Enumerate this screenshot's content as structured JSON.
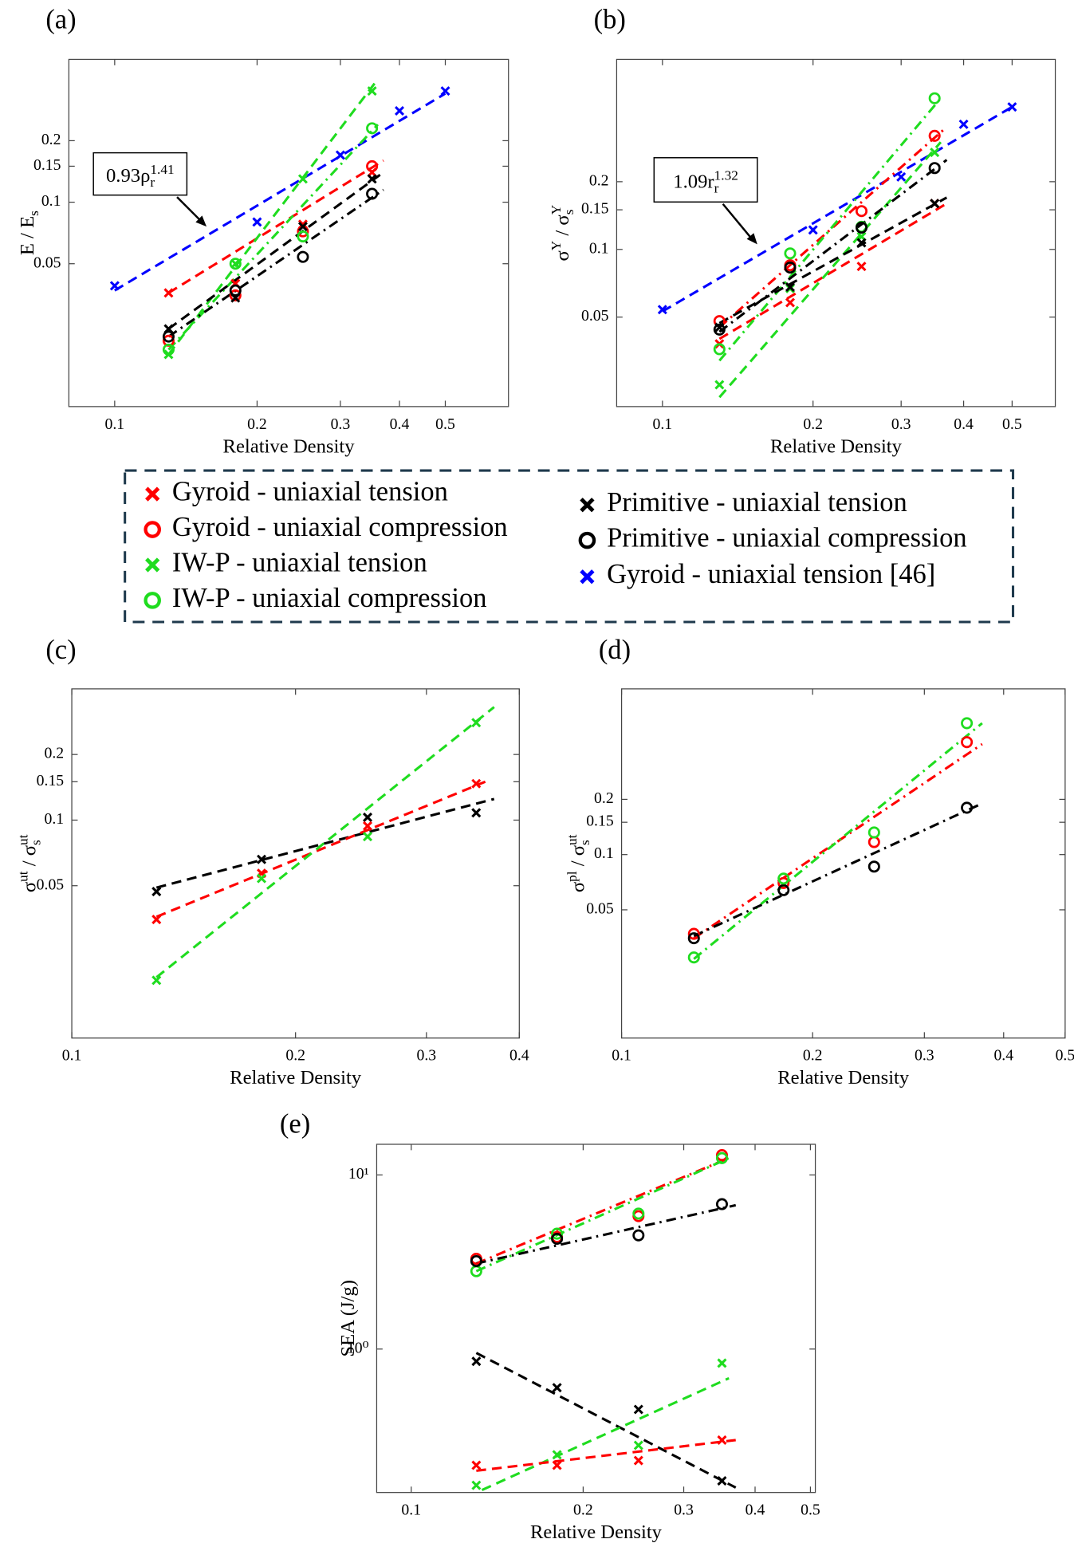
{
  "chart_data": [
    {
      "type": "scatter",
      "panel": "(a)",
      "xlabel": "Relative Density",
      "ylabel": [
        {
          "text": "E / E"
        },
        {
          "text": "s",
          "pos": "sub"
        }
      ],
      "xlog": true,
      "ylog": true,
      "xlim": [
        0.08,
        0.68
      ],
      "ylim": [
        0.01,
        0.5
      ],
      "xticks": [
        0.1,
        0.2,
        0.3,
        0.4,
        0.5
      ],
      "yticks": [
        0.05,
        0.1,
        0.15,
        0.2
      ],
      "annotation": [
        {
          "text": "0.93ρ"
        },
        {
          "text": "r",
          "pos": "sub"
        },
        {
          "text": "1.41",
          "pos": "sup"
        }
      ],
      "series": [
        {
          "color": "#ff0000",
          "marker": "x",
          "x": [
            0.13,
            0.18,
            0.25,
            0.35
          ],
          "values": [
            0.036,
            0.04,
            0.078,
            0.14
          ]
        },
        {
          "color": "#ff0000",
          "marker": "o",
          "x": [
            0.13,
            0.18,
            0.25,
            0.35
          ],
          "values": [
            0.021,
            0.035,
            0.072,
            0.15
          ]
        },
        {
          "color": "#1fdc1f",
          "marker": "x",
          "x": [
            0.13,
            0.18,
            0.25,
            0.35
          ],
          "values": [
            0.018,
            0.05,
            0.13,
            0.35
          ]
        },
        {
          "color": "#1fdc1f",
          "marker": "o",
          "x": [
            0.13,
            0.18,
            0.25,
            0.35
          ],
          "values": [
            0.019,
            0.05,
            0.068,
            0.23
          ]
        },
        {
          "color": "#000000",
          "marker": "x",
          "x": [
            0.13,
            0.18,
            0.25,
            0.35
          ],
          "values": [
            0.024,
            0.034,
            0.076,
            0.13
          ]
        },
        {
          "color": "#000000",
          "marker": "o",
          "x": [
            0.13,
            0.18,
            0.25,
            0.35
          ],
          "values": [
            0.022,
            0.037,
            0.054,
            0.11
          ]
        },
        {
          "color": "#0000ff",
          "marker": "x",
          "x": [
            0.1,
            0.2,
            0.3,
            0.4,
            0.5
          ],
          "values": [
            0.039,
            0.08,
            0.17,
            0.28,
            0.35
          ]
        }
      ],
      "fits": [
        {
          "color": "#0000ff",
          "dash": "dashed",
          "x": [
            0.1,
            0.5
          ],
          "values": [
            0.037,
            0.34
          ]
        },
        {
          "color": "#ff0000",
          "dash": "dashed",
          "x": [
            0.13,
            0.37
          ],
          "values": [
            0.036,
            0.16
          ]
        },
        {
          "color": "#1fdc1f",
          "dash": "dashed",
          "x": [
            0.13,
            0.36
          ],
          "values": [
            0.018,
            0.4
          ]
        },
        {
          "color": "#1fdc1f",
          "dash": "dashdot",
          "x": [
            0.13,
            0.36
          ],
          "values": [
            0.019,
            0.24
          ]
        },
        {
          "color": "#000000",
          "dash": "dashed",
          "x": [
            0.13,
            0.37
          ],
          "values": [
            0.024,
            0.14
          ]
        },
        {
          "color": "#000000",
          "dash": "dashdot",
          "x": [
            0.13,
            0.37
          ],
          "values": [
            0.022,
            0.115
          ]
        }
      ]
    },
    {
      "type": "scatter",
      "panel": "(b)",
      "xlabel": "Relative Density",
      "ylabel": [
        {
          "text": "σ"
        },
        {
          "text": "Y",
          "pos": "sup"
        },
        {
          "text": " / σ"
        },
        {
          "text": "s",
          "pos": "sub"
        },
        {
          "text": "Y",
          "pos": "sup"
        }
      ],
      "xlog": true,
      "ylog": true,
      "xlim": [
        0.081,
        0.61
      ],
      "ylim": [
        0.02,
        0.7
      ],
      "xticks": [
        0.1,
        0.2,
        0.3,
        0.4,
        0.5
      ],
      "yticks": [
        0.05,
        0.1,
        0.15,
        0.2
      ],
      "annotation": [
        {
          "text": "1.09r"
        },
        {
          "text": "r",
          "pos": "sub"
        },
        {
          "text": "1.32",
          "pos": "sup"
        }
      ],
      "series": [
        {
          "color": "#ff0000",
          "marker": "x",
          "x": [
            0.13,
            0.18,
            0.25,
            0.35
          ],
          "values": [
            0.038,
            0.058,
            0.084,
            0.16
          ]
        },
        {
          "color": "#ff0000",
          "marker": "o",
          "x": [
            0.13,
            0.18,
            0.25,
            0.35
          ],
          "values": [
            0.048,
            0.085,
            0.148,
            0.32
          ]
        },
        {
          "color": "#1fdc1f",
          "marker": "x",
          "x": [
            0.13,
            0.18,
            0.25,
            0.35
          ],
          "values": [
            0.025,
            0.067,
            0.114,
            0.27
          ]
        },
        {
          "color": "#1fdc1f",
          "marker": "o",
          "x": [
            0.13,
            0.18,
            0.25,
            0.35
          ],
          "values": [
            0.036,
            0.096,
            0.126,
            0.47
          ]
        },
        {
          "color": "#000000",
          "marker": "x",
          "x": [
            0.13,
            0.18,
            0.25,
            0.35
          ],
          "values": [
            0.045,
            0.068,
            0.107,
            0.16
          ]
        },
        {
          "color": "#000000",
          "marker": "o",
          "x": [
            0.13,
            0.18,
            0.25,
            0.35
          ],
          "values": [
            0.044,
            0.083,
            0.125,
            0.23
          ]
        },
        {
          "color": "#0000ff",
          "marker": "x",
          "x": [
            0.1,
            0.2,
            0.3,
            0.4,
            0.5
          ],
          "values": [
            0.054,
            0.122,
            0.21,
            0.36,
            0.43
          ]
        }
      ],
      "fits": [
        {
          "color": "#0000ff",
          "dash": "dashed",
          "x": [
            0.1,
            0.5
          ],
          "values": [
            0.053,
            0.43
          ]
        },
        {
          "color": "#ff0000",
          "dash": "dashed",
          "x": [
            0.13,
            0.37
          ],
          "values": [
            0.04,
            0.16
          ]
        },
        {
          "color": "#ff0000",
          "dash": "dashdot",
          "x": [
            0.13,
            0.37
          ],
          "values": [
            0.045,
            0.35
          ]
        },
        {
          "color": "#1fdc1f",
          "dash": "dashed",
          "x": [
            0.13,
            0.36
          ],
          "values": [
            0.022,
            0.3
          ]
        },
        {
          "color": "#1fdc1f",
          "dash": "dashdot",
          "x": [
            0.13,
            0.36
          ],
          "values": [
            0.032,
            0.47
          ]
        },
        {
          "color": "#000000",
          "dash": "dashed",
          "x": [
            0.13,
            0.37
          ],
          "values": [
            0.047,
            0.17
          ]
        },
        {
          "color": "#000000",
          "dash": "dashdot",
          "x": [
            0.13,
            0.37
          ],
          "values": [
            0.043,
            0.25
          ]
        }
      ]
    },
    {
      "type": "scatter",
      "panel": "(c)",
      "xlabel": "Relative Density",
      "ylabel": [
        {
          "text": "σ"
        },
        {
          "text": "ut",
          "pos": "sup"
        },
        {
          "text": " / σ"
        },
        {
          "text": "s",
          "pos": "sub"
        },
        {
          "text": "ut",
          "pos": "sup"
        }
      ],
      "xlog": true,
      "ylog": true,
      "xlim": [
        0.1,
        0.4
      ],
      "ylim": [
        0.01,
        0.4
      ],
      "xticks": [
        0.1,
        0.2,
        0.3,
        0.4
      ],
      "yticks": [
        0.05,
        0.1,
        0.15,
        0.2
      ],
      "series": [
        {
          "color": "#000000",
          "marker": "x",
          "x": [
            0.13,
            0.18,
            0.25,
            0.35
          ],
          "values": [
            0.047,
            0.066,
            0.103,
            0.108
          ]
        },
        {
          "color": "#ff0000",
          "marker": "x",
          "x": [
            0.13,
            0.18,
            0.25,
            0.35
          ],
          "values": [
            0.035,
            0.057,
            0.094,
            0.147
          ]
        },
        {
          "color": "#1fdc1f",
          "marker": "x",
          "x": [
            0.13,
            0.18,
            0.25,
            0.35
          ],
          "values": [
            0.0184,
            0.054,
            0.084,
            0.28
          ]
        }
      ],
      "fits": [
        {
          "color": "#000000",
          "dash": "dashed",
          "x": [
            0.13,
            0.37
          ],
          "values": [
            0.049,
            0.125
          ]
        },
        {
          "color": "#ff0000",
          "dash": "dashed",
          "x": [
            0.13,
            0.36
          ],
          "values": [
            0.036,
            0.15
          ]
        },
        {
          "color": "#1fdc1f",
          "dash": "dashed",
          "x": [
            0.13,
            0.37
          ],
          "values": [
            0.019,
            0.33
          ]
        }
      ]
    },
    {
      "type": "scatter",
      "panel": "(d)",
      "xlabel": "Relative Density",
      "ylabel": [
        {
          "text": "σ"
        },
        {
          "text": "pl",
          "pos": "sup"
        },
        {
          "text": " / σ"
        },
        {
          "text": "s",
          "pos": "sub"
        },
        {
          "text": "ut",
          "pos": "sup"
        }
      ],
      "xlog": true,
      "ylog": true,
      "xlim": [
        0.1,
        0.5
      ],
      "ylim": [
        0.01,
        0.8
      ],
      "xticks": [
        0.1,
        0.2,
        0.3,
        0.4,
        0.5
      ],
      "yticks": [
        0.05,
        0.1,
        0.15,
        0.2
      ],
      "series": [
        {
          "color": "#ff0000",
          "marker": "o",
          "x": [
            0.13,
            0.18,
            0.25,
            0.35
          ],
          "values": [
            0.037,
            0.07,
            0.117,
            0.41
          ]
        },
        {
          "color": "#000000",
          "marker": "o",
          "x": [
            0.13,
            0.18,
            0.25,
            0.35
          ],
          "values": [
            0.035,
            0.064,
            0.086,
            0.18
          ]
        },
        {
          "color": "#1fdc1f",
          "marker": "o",
          "x": [
            0.13,
            0.18,
            0.25,
            0.35
          ],
          "values": [
            0.0275,
            0.074,
            0.132,
            0.52
          ]
        }
      ],
      "fits": [
        {
          "color": "#ff0000",
          "dash": "dashdot",
          "x": [
            0.13,
            0.37
          ],
          "values": [
            0.035,
            0.4
          ]
        },
        {
          "color": "#1fdc1f",
          "dash": "dashdot",
          "x": [
            0.13,
            0.37
          ],
          "values": [
            0.027,
            0.52
          ]
        },
        {
          "color": "#000000",
          "dash": "dashdot",
          "x": [
            0.13,
            0.37
          ],
          "values": [
            0.036,
            0.19
          ]
        }
      ]
    },
    {
      "type": "scatter",
      "panel": "(e)",
      "xlabel": "Relative Density",
      "ylabel": [
        {
          "text": "SEA (J/g)"
        }
      ],
      "xlog": true,
      "ylog": true,
      "xlim": [
        0.087,
        0.51
      ],
      "ylim": [
        0.15,
        15
      ],
      "xticks": [
        0.1,
        0.2,
        0.3,
        0.4,
        0.5
      ],
      "yticks": [
        {
          "value": 1,
          "label": "10⁰"
        },
        {
          "value": 10,
          "label": "10¹"
        }
      ],
      "series": [
        {
          "color": "#ff0000",
          "marker": "o",
          "x": [
            0.13,
            0.18,
            0.25,
            0.35
          ],
          "values": [
            3.3,
            4.4,
            5.8,
            13
          ]
        },
        {
          "color": "#1fdc1f",
          "marker": "o",
          "x": [
            0.13,
            0.18,
            0.25,
            0.35
          ],
          "values": [
            2.8,
            4.6,
            6.0,
            12.5
          ]
        },
        {
          "color": "#000000",
          "marker": "o",
          "x": [
            0.13,
            0.18,
            0.25,
            0.35
          ],
          "values": [
            3.2,
            4.3,
            4.5,
            6.8
          ]
        },
        {
          "color": "#000000",
          "marker": "x",
          "x": [
            0.13,
            0.18,
            0.25,
            0.35
          ],
          "values": [
            0.85,
            0.6,
            0.45,
            0.175
          ]
        },
        {
          "color": "#ff0000",
          "marker": "x",
          "x": [
            0.13,
            0.18,
            0.25,
            0.35
          ],
          "values": [
            0.215,
            0.215,
            0.229,
            0.3
          ]
        },
        {
          "color": "#1fdc1f",
          "marker": "x",
          "x": [
            0.13,
            0.18,
            0.25,
            0.35
          ],
          "values": [
            0.165,
            0.247,
            0.28,
            0.83
          ]
        }
      ],
      "fits": [
        {
          "color": "#ff0000",
          "dash": "dashdot",
          "x": [
            0.13,
            0.36
          ],
          "values": [
            3.1,
            12.5
          ]
        },
        {
          "color": "#1fdc1f",
          "dash": "dashdot",
          "x": [
            0.13,
            0.36
          ],
          "values": [
            2.8,
            12.5
          ]
        },
        {
          "color": "#000000",
          "dash": "dashdot",
          "x": [
            0.13,
            0.37
          ],
          "values": [
            3.1,
            6.7
          ]
        },
        {
          "color": "#000000",
          "dash": "dashed",
          "x": [
            0.13,
            0.37
          ],
          "values": [
            0.95,
            0.16
          ]
        },
        {
          "color": "#1fdc1f",
          "dash": "dashed",
          "x": [
            0.133,
            0.36
          ],
          "values": [
            0.155,
            0.68
          ]
        },
        {
          "color": "#ff0000",
          "dash": "dashed",
          "x": [
            0.13,
            0.37
          ],
          "values": [
            0.2,
            0.3
          ]
        }
      ]
    }
  ],
  "legend": {
    "entries": [
      {
        "name": "Gyroid - uniaxial tension",
        "color": "#ff0000",
        "marker": "x"
      },
      {
        "name": "Gyroid - uniaxial compression",
        "color": "#ff0000",
        "marker": "o"
      },
      {
        "name": "IW-P - uniaxial tension",
        "color": "#1fdc1f",
        "marker": "x"
      },
      {
        "name": "IW-P - uniaxial compression",
        "color": "#1fdc1f",
        "marker": "o"
      },
      {
        "name": "Primitive - uniaxial tension",
        "color": "#000000",
        "marker": "x"
      },
      {
        "name": "Primitive - uniaxial compression",
        "color": "#000000",
        "marker": "o"
      },
      {
        "name": "Gyroid - uniaxial tension [46]",
        "color": "#0000ff",
        "marker": "x"
      }
    ]
  }
}
